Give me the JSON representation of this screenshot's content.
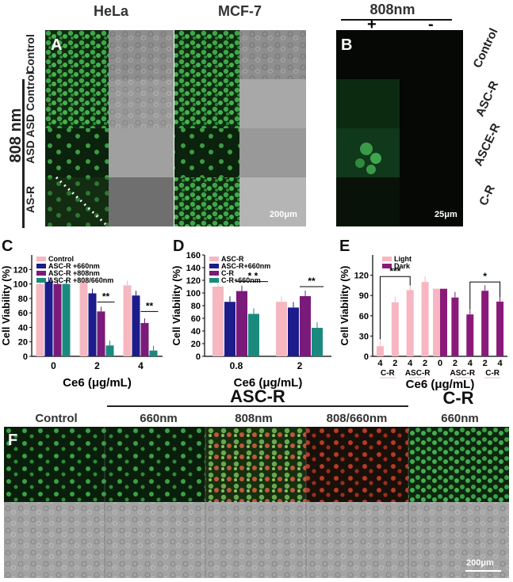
{
  "panelA": {
    "label": "A",
    "col_headers": [
      "HeLa",
      "MCF-7"
    ],
    "group_label": "808 nm",
    "row_labels": [
      "Control",
      "ASD Control",
      "ASD",
      "AS-R"
    ],
    "scalebar": "200μm"
  },
  "panelB": {
    "label": "B",
    "header": "808nm",
    "signs": [
      "+",
      "-"
    ],
    "row_labels": [
      "Control",
      "ASC-R",
      "ASCE-R",
      "C-R"
    ],
    "scalebar": "25μm"
  },
  "panelC": {
    "label": "C",
    "legend": [
      "Control",
      "ASC-R +660nm",
      "ASC-R +808nm",
      "ASC-R +808/660nm"
    ],
    "sig": [
      "**",
      "**"
    ]
  },
  "panelD": {
    "label": "D",
    "legend": [
      "ASC-R",
      "ASC-R+660nm",
      "C-R",
      "C-R+660nm"
    ],
    "sig": [
      "* *",
      "**"
    ]
  },
  "panelE": {
    "label": "E",
    "legend": [
      "Light",
      "Dark"
    ],
    "sig": [
      "***",
      "*"
    ],
    "tick_numbers": [
      "4",
      "2",
      "4",
      "2",
      "0",
      "2",
      "4",
      "2",
      "4"
    ],
    "group_labels": [
      "C-R",
      "ASC-R",
      "ASC-R",
      "C-R"
    ]
  },
  "panelF": {
    "label": "F",
    "top_header": "ASC-R",
    "side_header": "C-R",
    "col_headers": [
      "Control",
      "660nm",
      "808nm",
      "808/660nm",
      "660nm"
    ],
    "scalebar": "200μm"
  },
  "colors": {
    "control": "#f5b8c0",
    "navy": "#1c1c8a",
    "purple": "#7a1a7a",
    "teal": "#1b8a7e",
    "light": "#f7b6c2",
    "dark": "#8a1a7a"
  },
  "chart_data": [
    {
      "type": "bar",
      "title": "",
      "xlabel": "Ce6 (μg/mL)",
      "ylabel": "Cell Viability (%)",
      "ylim": [
        0,
        140
      ],
      "yticks": [
        0,
        20,
        40,
        60,
        80,
        100,
        120
      ],
      "categories": [
        "0",
        "2",
        "4"
      ],
      "series": [
        {
          "name": "Control",
          "color": "#f5b8c0",
          "values": [
            100,
            103,
            98
          ]
        },
        {
          "name": "ASC-R +660nm",
          "color": "#1c1c8a",
          "values": [
            103,
            87,
            84
          ]
        },
        {
          "name": "ASC-R +808nm",
          "color": "#7a1a7a",
          "values": [
            100,
            62,
            46
          ]
        },
        {
          "name": "ASC-R +808/660nm",
          "color": "#1b8a7e",
          "values": [
            100,
            15,
            8
          ]
        }
      ]
    },
    {
      "type": "bar",
      "title": "",
      "xlabel": "Ce6 (μg/mL)",
      "ylabel": "Cell Viability (%)",
      "ylim": [
        0,
        160
      ],
      "yticks": [
        0,
        20,
        40,
        60,
        80,
        100,
        120,
        140,
        160
      ],
      "categories": [
        "0.8",
        "2"
      ],
      "series": [
        {
          "name": "ASC-R",
          "color": "#f5b8c0",
          "values": [
            110,
            86
          ]
        },
        {
          "name": "ASC-R+660nm",
          "color": "#1c1c8a",
          "values": [
            86,
            77
          ]
        },
        {
          "name": "C-R",
          "color": "#7a1a7a",
          "values": [
            103,
            95
          ]
        },
        {
          "name": "C-R+660nm",
          "color": "#1b8a7e",
          "values": [
            67,
            45
          ]
        }
      ]
    },
    {
      "type": "bar",
      "title": "",
      "xlabel": "Ce6 (μg/mL)",
      "ylabel": "Cell Viability (%)",
      "ylim": [
        0,
        150
      ],
      "yticks": [
        0,
        30,
        60,
        90,
        120
      ],
      "categories": [
        "C-R 4",
        "C-R 2",
        "ASC-R 4",
        "ASC-R 2",
        "0",
        "ASC-R 2",
        "ASC-R 4",
        "C-R 2",
        "C-R 4"
      ],
      "series": [
        {
          "name": "Light",
          "color": "#f7b6c2",
          "values": [
            15,
            80,
            98,
            110,
            100,
            null,
            null,
            null,
            null
          ]
        },
        {
          "name": "Dark",
          "color": "#8a1a7a",
          "values": [
            null,
            null,
            null,
            null,
            100,
            87,
            62,
            97,
            81
          ]
        }
      ]
    }
  ]
}
